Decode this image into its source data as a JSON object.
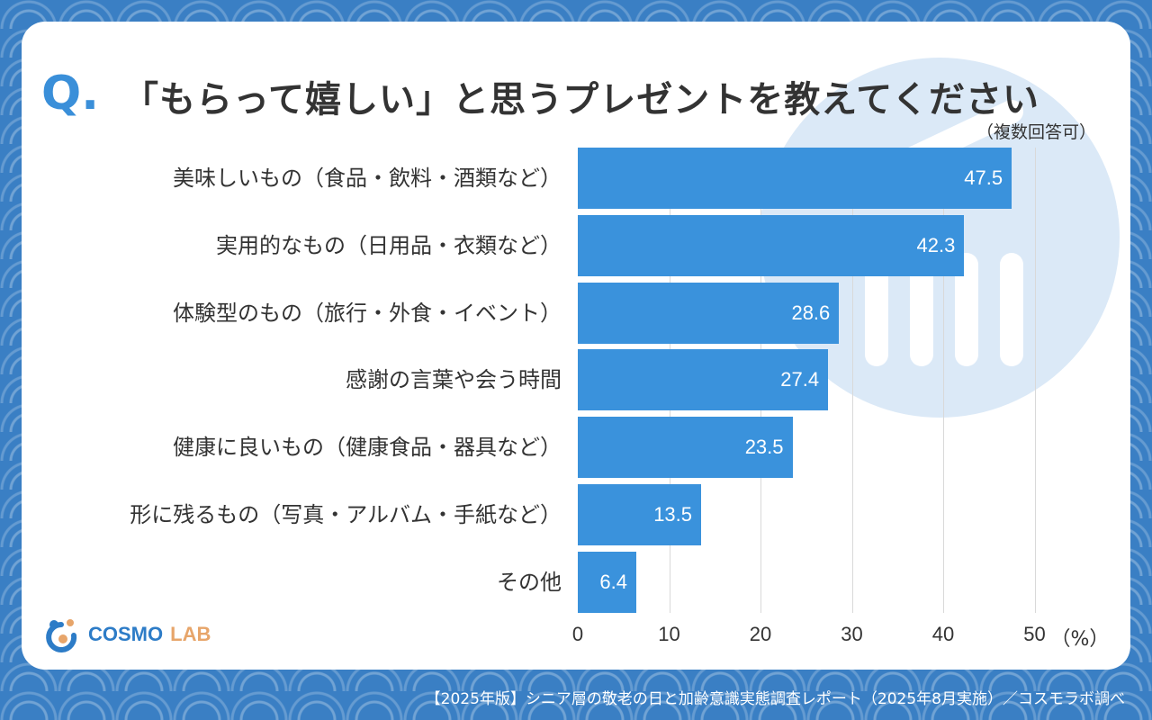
{
  "header": {
    "q_mark": "Q.",
    "title": "「もらって嬉しい」と思うプレゼントを教えてください",
    "note": "（複数回答可）"
  },
  "chart_data": {
    "type": "bar",
    "orientation": "horizontal",
    "categories": [
      "美味しいもの（食品・飲料・酒類など）",
      "実用的なもの（日用品・衣類など）",
      "体験型のもの（旅行・外食・イベント）",
      "感謝の言葉や会う時間",
      "健康に良いもの（健康食品・器具など）",
      "形に残るもの（写真・アルバム・手紙など）",
      "その他"
    ],
    "values": [
      47.5,
      42.3,
      28.6,
      27.4,
      23.5,
      13.5,
      6.4
    ],
    "value_labels": [
      "47.5",
      "42.3",
      "28.6",
      "27.4",
      "23.5",
      "13.5",
      "6.4"
    ],
    "xlim": [
      0,
      50
    ],
    "ticks": [
      "0",
      "10",
      "20",
      "30",
      "40",
      "50"
    ],
    "unit": "（%）",
    "bar_color": "#3a92dc",
    "grid": true
  },
  "logo": {
    "cosmo": "COSMO",
    "lab": "LAB"
  },
  "footer": "【2025年版】シニア層の敬老の日と加齢意識実態調査レポート（2025年8月実施）／コスモラボ調べ"
}
